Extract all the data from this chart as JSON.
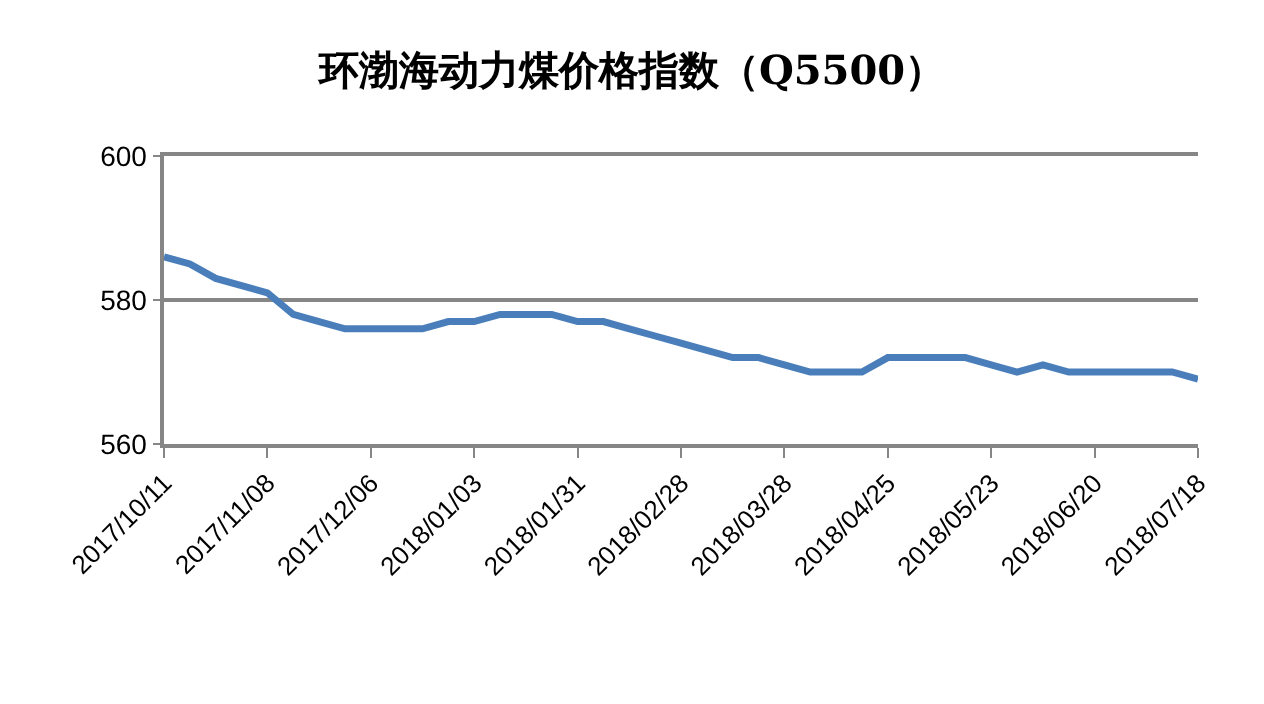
{
  "chart_data": {
    "type": "line",
    "title": "环渤海动力煤价格指数（Q5500）",
    "x": [
      "2017-10-11",
      "2017-10-18",
      "2017-10-25",
      "2017-11-01",
      "2017-11-08",
      "2017-11-15",
      "2017-11-22",
      "2017-11-29",
      "2017-12-06",
      "2017-12-13",
      "2017-12-20",
      "2017-12-27",
      "2018-01-03",
      "2018-01-10",
      "2018-01-17",
      "2018-01-24",
      "2018-01-31",
      "2018-02-07",
      "2018-02-14",
      "2018-02-21",
      "2018-02-28",
      "2018-03-07",
      "2018-03-14",
      "2018-03-21",
      "2018-03-28",
      "2018-04-04",
      "2018-04-11",
      "2018-04-18",
      "2018-04-25",
      "2018-05-02",
      "2018-05-09",
      "2018-05-16",
      "2018-05-23",
      "2018-05-30",
      "2018-06-06",
      "2018-06-13",
      "2018-06-20",
      "2018-06-27",
      "2018-07-04",
      "2018-07-11",
      "2018-07-18"
    ],
    "series": [
      {
        "color": "#4a7ebb",
        "values": [
          586,
          585,
          583,
          582,
          581,
          578,
          577,
          576,
          576,
          576,
          576,
          577,
          577,
          578,
          578,
          578,
          577,
          577,
          576,
          575,
          574,
          573,
          572,
          572,
          571,
          570,
          570,
          570,
          572,
          572,
          572,
          572,
          571,
          570,
          571,
          570,
          570,
          570,
          570,
          570,
          569
        ]
      }
    ],
    "xlim": [
      "2017-10-11",
      "2018-07-18"
    ],
    "xticks": [
      {
        "value": "2017-10-11",
        "label": "2017/10/11"
      },
      {
        "value": "2017-11-08",
        "label": "2017/11/08"
      },
      {
        "value": "2017-12-06",
        "label": "2017/12/06"
      },
      {
        "value": "2018-01-03",
        "label": "2018/01/03"
      },
      {
        "value": "2018-01-31",
        "label": "2018/01/31"
      },
      {
        "value": "2018-02-28",
        "label": "2018/02/28"
      },
      {
        "value": "2018-03-28",
        "label": "2018/03/28"
      },
      {
        "value": "2018-04-25",
        "label": "2018/04/25"
      },
      {
        "value": "2018-05-23",
        "label": "2018/05/23"
      },
      {
        "value": "2018-06-20",
        "label": "2018/06/20"
      },
      {
        "value": "2018-07-18",
        "label": "2018/07/18"
      }
    ],
    "ylim": [
      560,
      600
    ],
    "yticks": [
      560,
      580,
      600
    ],
    "grid": "y",
    "marker": "none",
    "line_style": "solid"
  }
}
